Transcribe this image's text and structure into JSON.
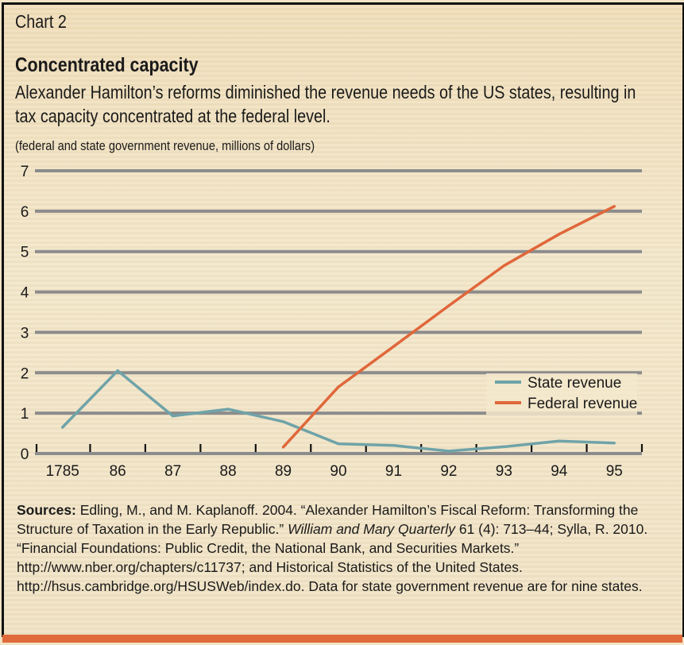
{
  "header": {
    "chart_label": "Chart 2",
    "title": "Concentrated capacity",
    "subtitle": "Alexander Hamilton’s reforms diminished the revenue needs of the US states, resulting in  tax capacity concentrated at the federal level.",
    "units": "(federal and state government revenue, millions of dollars)"
  },
  "sources": {
    "label": "Sources:",
    "text_1": " Edling, M., and M. Kaplanoff. 2004. “Alexander Hamilton’s Fiscal Reform: Transforming the Structure of Taxation in the Early Republic.” ",
    "journal": "William and Mary Quarterly",
    "text_2": " 61 (4): 713–44; Sylla, R. 2010. “Financial Foundations: Public Credit, the National Bank, and Securities Markets.” http://www.nber.org/chapters/c11737; and Historical Statistics of the United States. http://hsus.cambridge.org/HSUSWeb/index.do. Data for state government revenue are for nine states."
  },
  "colors": {
    "state": "#6fa3a8",
    "federal": "#e0673a",
    "grid": "#8c8c8c",
    "accent_bar": "#e06a3a"
  },
  "chart_data": {
    "type": "line",
    "title": "Concentrated capacity",
    "xlabel": "",
    "ylabel": "federal and state government revenue, millions of dollars",
    "categories": [
      "1785",
      "86",
      "87",
      "88",
      "89",
      "90",
      "91",
      "92",
      "93",
      "94",
      "95"
    ],
    "ylim": [
      0,
      7
    ],
    "yticks": [
      "0",
      "1",
      "2",
      "3",
      "4",
      "5",
      "6",
      "7"
    ],
    "grid": true,
    "legend_position": "center-right",
    "series": [
      {
        "name": "State revenue",
        "color": "#6fa3a8",
        "values": [
          0.65,
          2.05,
          0.93,
          1.1,
          0.79,
          0.24,
          0.2,
          0.06,
          0.17,
          0.31,
          0.26
        ]
      },
      {
        "name": "Federal revenue",
        "color": "#e0673a",
        "values": [
          null,
          null,
          null,
          null,
          0.16,
          1.65,
          2.65,
          3.66,
          4.65,
          5.43,
          6.12
        ]
      }
    ]
  }
}
